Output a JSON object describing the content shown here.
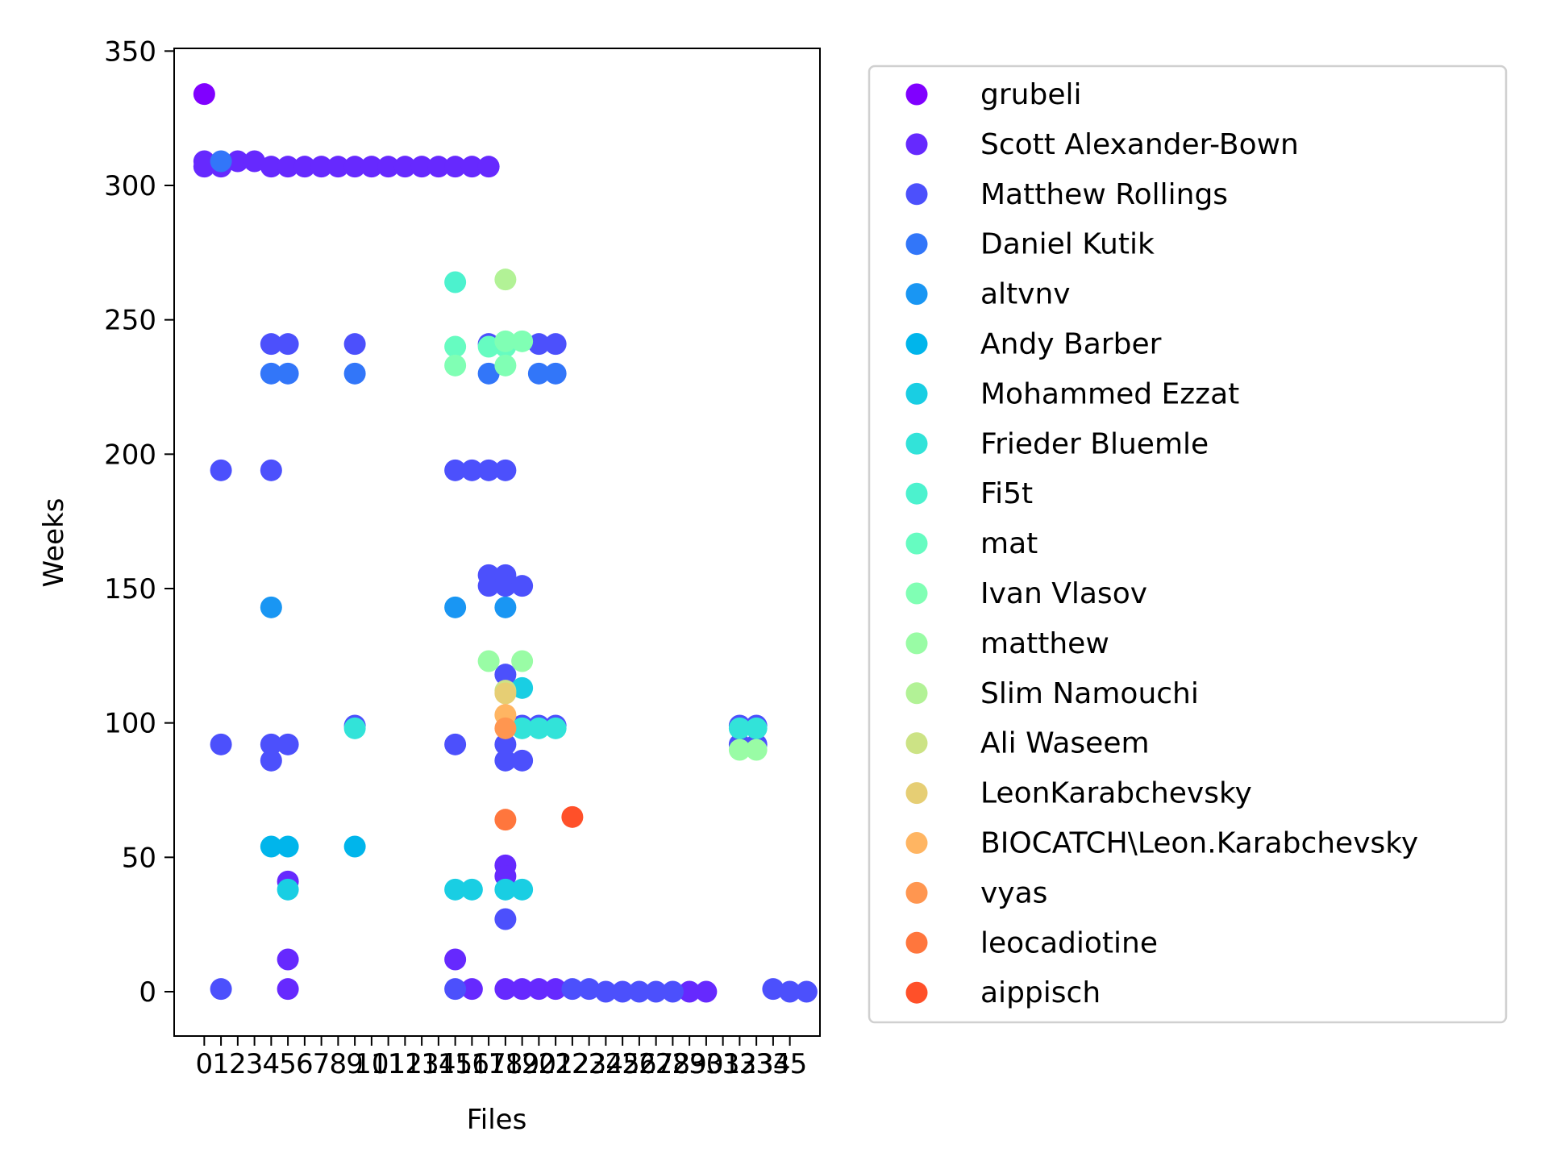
{
  "chart_data": {
    "type": "scatter",
    "title": "",
    "xlabel": "Files",
    "ylabel": "Weeks",
    "xlim": [
      -1.8,
      36.8
    ],
    "ylim": [
      -16.5,
      351
    ],
    "x_ticks": [
      0,
      1,
      2,
      3,
      4,
      5,
      6,
      7,
      8,
      9,
      10,
      11,
      12,
      13,
      14,
      15,
      16,
      17,
      18,
      19,
      20,
      21,
      22,
      23,
      24,
      25,
      26,
      27,
      28,
      29,
      30,
      31,
      32,
      33,
      34,
      35
    ],
    "y_ticks": [
      0,
      50,
      100,
      150,
      200,
      250,
      300,
      350
    ],
    "grid": false,
    "legend_position": "outside-right",
    "series": [
      {
        "name": "grubeli",
        "color": "#8000ff",
        "points": [
          [
            0,
            334
          ]
        ]
      },
      {
        "name": "Scott Alexander-Bown",
        "color": "#6629fe",
        "points": [
          [
            0,
            309
          ],
          [
            0,
            307
          ],
          [
            1,
            307
          ],
          [
            2,
            309
          ],
          [
            3,
            309
          ],
          [
            4,
            307
          ],
          [
            5,
            307
          ],
          [
            6,
            307
          ],
          [
            7,
            307
          ],
          [
            8,
            307
          ],
          [
            9,
            307
          ],
          [
            10,
            307
          ],
          [
            11,
            307
          ],
          [
            12,
            307
          ],
          [
            13,
            307
          ],
          [
            14,
            307
          ],
          [
            15,
            307
          ],
          [
            16,
            307
          ],
          [
            17,
            307
          ],
          [
            5,
            41
          ],
          [
            5,
            12
          ],
          [
            5,
            1
          ],
          [
            15,
            12
          ],
          [
            16,
            1
          ],
          [
            18,
            47
          ],
          [
            18,
            43
          ],
          [
            18,
            1
          ],
          [
            19,
            1
          ],
          [
            20,
            1
          ],
          [
            21,
            1
          ],
          [
            29,
            0
          ],
          [
            30,
            0
          ]
        ]
      },
      {
        "name": "Matthew Rollings",
        "color": "#4c50fc",
        "points": [
          [
            1,
            194
          ],
          [
            1,
            92
          ],
          [
            1,
            1
          ],
          [
            4,
            241
          ],
          [
            4,
            194
          ],
          [
            4,
            92
          ],
          [
            4,
            86
          ],
          [
            5,
            241
          ],
          [
            5,
            92
          ],
          [
            9,
            241
          ],
          [
            9,
            99
          ],
          [
            15,
            194
          ],
          [
            15,
            92
          ],
          [
            15,
            1
          ],
          [
            16,
            194
          ],
          [
            17,
            241
          ],
          [
            17,
            194
          ],
          [
            17,
            155
          ],
          [
            17,
            151
          ],
          [
            18,
            194
          ],
          [
            18,
            155
          ],
          [
            18,
            151
          ],
          [
            18,
            118
          ],
          [
            18,
            92
          ],
          [
            18,
            86
          ],
          [
            18,
            27
          ],
          [
            19,
            151
          ],
          [
            19,
            99
          ],
          [
            19,
            86
          ],
          [
            20,
            241
          ],
          [
            20,
            99
          ],
          [
            21,
            241
          ],
          [
            21,
            99
          ],
          [
            22,
            1
          ],
          [
            23,
            1
          ],
          [
            24,
            0
          ],
          [
            25,
            0
          ],
          [
            26,
            0
          ],
          [
            27,
            0
          ],
          [
            28,
            0
          ],
          [
            32,
            99
          ],
          [
            32,
            92
          ],
          [
            33,
            99
          ],
          [
            33,
            92
          ],
          [
            34,
            1
          ],
          [
            35,
            0
          ],
          [
            36,
            0
          ]
        ]
      },
      {
        "name": "Daniel Kutik",
        "color": "#3276f9",
        "points": [
          [
            1,
            309
          ],
          [
            4,
            230
          ],
          [
            5,
            230
          ],
          [
            9,
            230
          ],
          [
            17,
            230
          ],
          [
            20,
            230
          ],
          [
            21,
            230
          ]
        ]
      },
      {
        "name": "altvnv",
        "color": "#1996f3",
        "points": [
          [
            4,
            143
          ],
          [
            15,
            143
          ],
          [
            18,
            143
          ]
        ]
      },
      {
        "name": "Andy Barber",
        "color": "#00b5eb",
        "points": [
          [
            4,
            54
          ],
          [
            5,
            54
          ],
          [
            9,
            54
          ]
        ]
      },
      {
        "name": "Mohammed Ezzat",
        "color": "#19cee3",
        "points": [
          [
            5,
            38
          ],
          [
            15,
            38
          ],
          [
            16,
            38
          ],
          [
            18,
            38
          ],
          [
            19,
            38
          ],
          [
            19,
            113
          ]
        ]
      },
      {
        "name": "Frieder Bluemle",
        "color": "#32e3d9",
        "points": [
          [
            9,
            98
          ],
          [
            19,
            98
          ],
          [
            20,
            98
          ],
          [
            21,
            98
          ],
          [
            32,
            98
          ],
          [
            33,
            98
          ]
        ]
      },
      {
        "name": "Fi5t",
        "color": "#4cf2ce",
        "points": [
          [
            15,
            264
          ]
        ]
      },
      {
        "name": "mat",
        "color": "#66fcc1",
        "points": [
          [
            15,
            240
          ],
          [
            17,
            240
          ],
          [
            18,
            240
          ]
        ]
      },
      {
        "name": "Ivan Vlasov",
        "color": "#80ffb4",
        "points": [
          [
            15,
            233
          ],
          [
            18,
            242
          ],
          [
            18,
            233
          ],
          [
            19,
            242
          ]
        ]
      },
      {
        "name": "matthew",
        "color": "#99fca5",
        "points": [
          [
            17,
            123
          ],
          [
            19,
            123
          ],
          [
            32,
            90
          ],
          [
            33,
            90
          ]
        ]
      },
      {
        "name": "Slim Namouchi",
        "color": "#b2f296",
        "points": [
          [
            18,
            265
          ]
        ]
      },
      {
        "name": "Ali Waseem",
        "color": "#cce385",
        "points": [
          [
            18,
            112
          ]
        ]
      },
      {
        "name": "LeonKarabchevsky",
        "color": "#e6ce74",
        "points": [
          [
            18,
            111
          ]
        ]
      },
      {
        "name": "BIOCATCH\\Leon.Karabchevsky",
        "color": "#ffb562",
        "points": [
          [
            18,
            103
          ]
        ]
      },
      {
        "name": "vyas",
        "color": "#ff9650",
        "points": [
          [
            18,
            98
          ]
        ]
      },
      {
        "name": "leocadiotine",
        "color": "#ff763d",
        "points": [
          [
            18,
            64
          ]
        ]
      },
      {
        "name": "aippisch",
        "color": "#ff5029",
        "points": [
          [
            22,
            65
          ]
        ]
      }
    ]
  }
}
